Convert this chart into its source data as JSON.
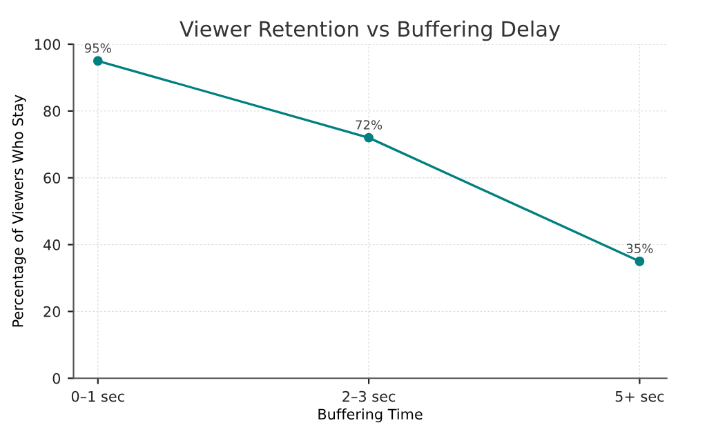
{
  "chart_data": {
    "type": "line",
    "title": "Viewer Retention vs Buffering Delay",
    "xlabel": "Buffering Time",
    "ylabel": "Percentage of Viewers Who Stay",
    "categories": [
      "0–1 sec",
      "2–3 sec",
      "5+ sec"
    ],
    "series": [
      {
        "color": "#008080",
        "values": [
          95,
          72,
          35
        ],
        "value_labels": [
          "95%",
          "72%",
          "35%"
        ]
      }
    ],
    "ylim": [
      0,
      100
    ],
    "yticks": [
      0,
      20,
      40,
      60,
      80,
      100
    ],
    "grid": true,
    "marker": "circle",
    "line_style": "solid"
  }
}
